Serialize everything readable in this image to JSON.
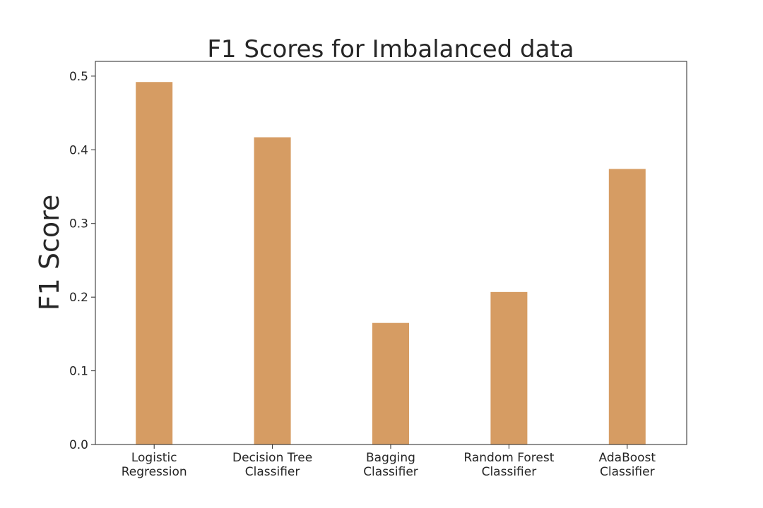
{
  "chart_data": {
    "type": "bar",
    "title": "F1 Scores for Imbalanced data",
    "xlabel": "",
    "ylabel": "F1 Score",
    "categories": [
      [
        "Logistic",
        "Regression"
      ],
      [
        "Decision Tree",
        "Classifier"
      ],
      [
        "Bagging",
        "Classifier"
      ],
      [
        "Random Forest",
        "Classifier"
      ],
      [
        "AdaBoost",
        "Classifier"
      ]
    ],
    "values": [
      0.492,
      0.417,
      0.165,
      0.207,
      0.374
    ],
    "ylim": [
      0,
      0.52
    ],
    "yticks": [
      0.0,
      0.1,
      0.2,
      0.3,
      0.4,
      0.5
    ],
    "ytick_labels": [
      "0.0",
      "0.1",
      "0.2",
      "0.3",
      "0.4",
      "0.5"
    ],
    "grid": false,
    "bar_color": "#d69c63",
    "axis_color": "#262626"
  }
}
